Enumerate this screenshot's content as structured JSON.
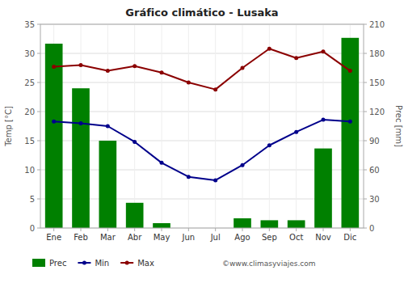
{
  "chart_data": {
    "type": "combo",
    "title": "Gráfico climático - Lusaka",
    "categories": [
      "Ene",
      "Feb",
      "Mar",
      "Abr",
      "May",
      "Jun",
      "Jul",
      "Ago",
      "Sep",
      "Oct",
      "Nov",
      "Dic"
    ],
    "series": [
      {
        "name": "Prec",
        "type": "bar",
        "axis": "y2",
        "color": "#008000",
        "values": [
          190,
          144,
          90,
          26,
          5,
          0,
          0,
          10,
          8,
          8,
          82,
          196
        ]
      },
      {
        "name": "Min",
        "type": "line",
        "color": "#00008B",
        "marker": "circle",
        "values": [
          18.3,
          18.0,
          17.5,
          14.8,
          11.2,
          8.8,
          8.2,
          10.8,
          14.2,
          16.5,
          18.6,
          18.3
        ]
      },
      {
        "name": "Max",
        "type": "line",
        "color": "#8B0000",
        "marker": "circle",
        "values": [
          27.7,
          28.0,
          27.0,
          27.8,
          26.7,
          25.0,
          23.8,
          27.5,
          30.8,
          29.2,
          30.3,
          27.0
        ]
      }
    ],
    "ylabel": "Temp [°C]",
    "y2label": "Prec [mm]",
    "ylim": [
      0,
      35
    ],
    "yticks": [
      0,
      5,
      10,
      15,
      20,
      25,
      30,
      35
    ],
    "y2lim": [
      0,
      210
    ],
    "y2ticks": [
      0,
      30,
      60,
      90,
      120,
      150,
      180,
      210
    ],
    "grid": true,
    "legend": "bottom",
    "annotations": [
      "©www.climasyviajes.com"
    ]
  }
}
